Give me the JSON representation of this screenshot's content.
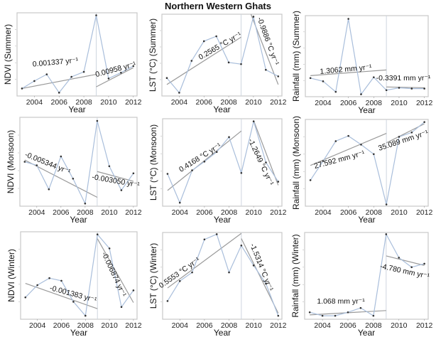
{
  "title": "Northern Western Ghats",
  "colors": {
    "series": "#a9bedb",
    "points": "#333333",
    "trend": "#9a9a9a",
    "frame": "#c8c8c8",
    "break": "#cfd6df"
  },
  "chart_data": [
    {
      "type": "line",
      "ylabel": "NDVI (Summer)",
      "xlabel": "Year",
      "x": [
        2003,
        2004,
        2005,
        2006,
        2007,
        2008,
        2009,
        2010,
        2011,
        2012
      ],
      "values": [
        9,
        18,
        26,
        4,
        23,
        29,
        97,
        21,
        28,
        36
      ],
      "ylim": [
        0,
        100
      ],
      "xlim": [
        2002.6,
        2012.3
      ],
      "xticks": [
        2004,
        2006,
        2008,
        2010,
        2012
      ],
      "break_year": 2009,
      "trends": [
        {
          "label": "0.001337 yr⁻¹",
          "line": [
            2003,
            9,
            2009,
            26
          ]
        },
        {
          "label": "0.00958 yr⁻¹",
          "line": [
            2009,
            11,
            2012,
            34
          ]
        }
      ]
    },
    {
      "type": "line",
      "ylabel": "LST  (°C) (Summer)",
      "xlabel": "Year",
      "x": [
        2003,
        2004,
        2005,
        2006,
        2007,
        2008,
        2009,
        2010,
        2011,
        2012
      ],
      "values": [
        22,
        4,
        43,
        67,
        73,
        41,
        39,
        97,
        32,
        24
      ],
      "ylim": [
        0,
        100
      ],
      "xlim": [
        2002.6,
        2012.3
      ],
      "xticks": [
        2004,
        2006,
        2008,
        2010,
        2012
      ],
      "break_year": 2009,
      "trends": [
        {
          "label": "0.2565 °C yr⁻¹",
          "line": [
            2003,
            14,
            2009,
            72
          ]
        },
        {
          "label": "-0.9886 °C yr⁻¹",
          "line": [
            2009.8,
            100,
            2012,
            14
          ]
        }
      ]
    },
    {
      "type": "line",
      "ylabel": "Rainfall (mm) (Summer)",
      "xlabel": "Year",
      "x": [
        2003,
        2004,
        2005,
        2006,
        2007,
        2008,
        2009,
        2010,
        2011,
        2012
      ],
      "values": [
        23,
        19,
        6,
        96,
        3,
        24,
        8,
        11,
        10,
        10
      ],
      "ylim": [
        0,
        100
      ],
      "xlim": [
        2002.6,
        2012.3
      ],
      "xticks": [
        2004,
        2006,
        2008,
        2010,
        2012
      ],
      "break_year": 2009,
      "trends": [
        {
          "label": "1.3062 mm yr⁻¹",
          "line": [
            2003,
            26,
            2009,
            33
          ]
        },
        {
          "label": "-0.3391 mm yr⁻¹",
          "line": [
            2009,
            12,
            2012,
            11
          ]
        }
      ]
    },
    {
      "type": "line",
      "ylabel": "NDVI (Monsoon)",
      "xlabel": "Year",
      "x": [
        2003,
        2004,
        2005,
        2006,
        2007,
        2008,
        2009,
        2010,
        2011,
        2012
      ],
      "values": [
        50,
        46,
        19,
        56,
        31,
        3,
        96,
        45,
        18,
        37
      ],
      "ylim": [
        0,
        100
      ],
      "xlim": [
        2002.6,
        2012.3
      ],
      "xticks": [
        2004,
        2006,
        2008,
        2010,
        2012
      ],
      "break_year": 2009,
      "trends": [
        {
          "label": "-0.005344 yr⁻¹",
          "line": [
            2003,
            52,
            2009,
            10
          ]
        },
        {
          "label": "-0.003050 yr⁻¹",
          "line": [
            2009,
            39,
            2012,
            28
          ]
        }
      ]
    },
    {
      "type": "line",
      "ylabel": "LST  (°C) (Monsoon)",
      "xlabel": "Year",
      "x": [
        2003,
        2004,
        2005,
        2006,
        2007,
        2008,
        2009,
        2010,
        2011,
        2012
      ],
      "values": [
        37,
        4,
        41,
        51,
        62,
        79,
        38,
        97,
        50,
        28
      ],
      "ylim": [
        0,
        100
      ],
      "xlim": [
        2002.6,
        2012.3
      ],
      "xticks": [
        2004,
        2006,
        2008,
        2010,
        2012
      ],
      "break_year": 2009,
      "trends": [
        {
          "label": "0.4168 °C yr⁻¹",
          "line": [
            2003,
            18,
            2009,
            86
          ]
        },
        {
          "label": "-1.2649 °C yr⁻¹",
          "line": [
            2010,
            98,
            2012,
            24
          ]
        }
      ]
    },
    {
      "type": "line",
      "ylabel": "Rainfall (mm) (Monsoon)",
      "xlabel": "Year",
      "x": [
        2003,
        2004,
        2005,
        2006,
        2007,
        2008,
        2009,
        2010,
        2011,
        2012
      ],
      "values": [
        30,
        52,
        75,
        81,
        71,
        60,
        2,
        80,
        85,
        97
      ],
      "ylim": [
        0,
        100
      ],
      "xlim": [
        2002.6,
        2012.3
      ],
      "xticks": [
        2004,
        2006,
        2008,
        2010,
        2012
      ],
      "break_year": 2009,
      "trends": [
        {
          "label": "27.592 mm yr⁻¹",
          "line": [
            2003,
            47,
            2009,
            84
          ]
        },
        {
          "label": "35.089 mm yr⁻¹",
          "line": [
            2009,
            73,
            2012,
            95
          ]
        }
      ]
    },
    {
      "type": "line",
      "ylabel": "NDVI (Winter)",
      "xlabel": "Year",
      "x": [
        2003,
        2004,
        2005,
        2006,
        2007,
        2008,
        2009,
        2010,
        2011,
        2012
      ],
      "values": [
        25,
        39,
        47,
        44,
        20,
        4,
        97,
        81,
        14,
        33
      ],
      "ylim": [
        0,
        100
      ],
      "xlim": [
        2002.6,
        2012.3
      ],
      "xticks": [
        2004,
        2006,
        2008,
        2010,
        2012
      ],
      "break_year": 2009,
      "trends": [
        {
          "label": "-0.001383 yr⁻¹",
          "line": [
            2003,
            41,
            2009,
            12
          ]
        },
        {
          "label": "-0.006874 yr⁻¹",
          "line": [
            2009,
            92,
            2012,
            19
          ]
        }
      ]
    },
    {
      "type": "line",
      "ylabel": "LST  (°C) (Winter)",
      "xlabel": "Year",
      "x": [
        2003,
        2004,
        2005,
        2006,
        2007,
        2008,
        2009,
        2010,
        2011,
        2012
      ],
      "values": [
        21,
        44,
        54,
        92,
        98,
        54,
        85,
        62,
        41,
        4
      ],
      "ylim": [
        0,
        100
      ],
      "xlim": [
        2002.6,
        2012.3
      ],
      "xticks": [
        2004,
        2006,
        2008,
        2010,
        2012
      ],
      "break_year": 2009,
      "trends": [
        {
          "label": "0.5553 °C yr⁻¹",
          "line": [
            2003,
            36,
            2009,
            99
          ]
        },
        {
          "label": "-1.5314 °C yr⁻¹",
          "line": [
            2009,
            93,
            2012,
            7
          ]
        }
      ]
    },
    {
      "type": "line",
      "ylabel": "Rainfall (mm) (Winter)",
      "xlabel": "Year",
      "x": [
        2003,
        2004,
        2005,
        2006,
        2007,
        2008,
        2009,
        2010,
        2011,
        2012
      ],
      "values": [
        8,
        4,
        4,
        8,
        13,
        4,
        98,
        71,
        60,
        64
      ],
      "ylim": [
        0,
        100
      ],
      "xlim": [
        2002.6,
        2012.3
      ],
      "xticks": [
        2004,
        2006,
        2008,
        2010,
        2012
      ],
      "break_year": 2009,
      "trends": [
        {
          "label": "1.068 mm yr⁻¹",
          "line": [
            2003,
            5,
            2009,
            10
          ]
        },
        {
          "label": "-4.780 mm yr⁻¹",
          "line": [
            2009,
            73,
            2012,
            62
          ]
        }
      ]
    }
  ]
}
